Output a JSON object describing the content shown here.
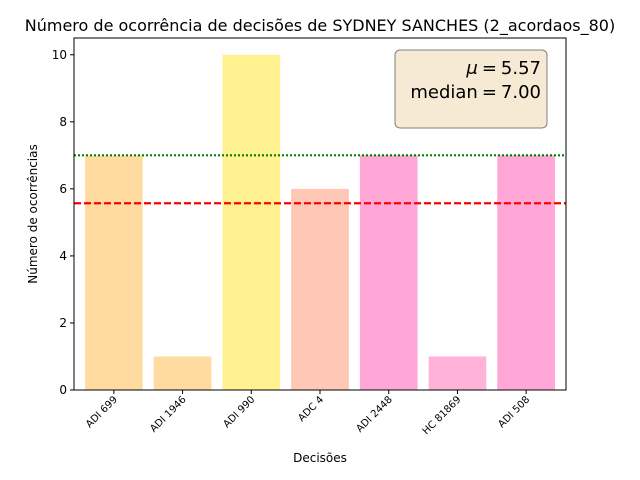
{
  "chart_data": {
    "type": "bar",
    "title": "Número de ocorrência de decisões de SYDNEY SANCHES (2_acordaos_80)",
    "xlabel": "Decisões",
    "ylabel": "Número de ocorrências",
    "categories": [
      "ADI 699",
      "ADI 1946",
      "ADI 990",
      "ADC 4",
      "ADI 2448",
      "HC 81869",
      "ADI 508"
    ],
    "values": [
      7,
      1,
      10,
      6,
      7,
      1,
      7
    ],
    "bar_colors": [
      "#ffdba1",
      "#ffdba1",
      "#fff18f",
      "#ffc8b6",
      "#ffa7d6",
      "#ffb3d8",
      "#ffa7d6"
    ],
    "ylim": [
      0,
      10.5
    ],
    "yticks": [
      0,
      2,
      4,
      6,
      8,
      10
    ],
    "grid": false,
    "reference_lines": [
      {
        "label": "mean",
        "value": 5.57,
        "color": "#ff0000",
        "style": "dashed"
      },
      {
        "label": "median",
        "value": 7.0,
        "color": "#008000",
        "style": "dotted"
      }
    ],
    "stats_box": {
      "mean_label": "μ",
      "mean_text": "5.57",
      "median_label": "median",
      "median_text": "7.00",
      "placement": "top-right",
      "background": "#f7ead5"
    }
  }
}
